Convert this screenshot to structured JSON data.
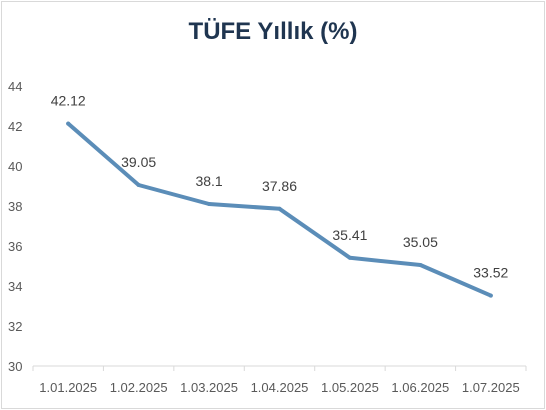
{
  "chart_data": {
    "type": "line",
    "title": "TÜFE Yıllık (%)",
    "categories": [
      "1.01.2025",
      "1.02.2025",
      "1.03.2025",
      "1.04.2025",
      "1.05.2025",
      "1.06.2025",
      "1.07.2025"
    ],
    "series": [
      {
        "values": [
          42.12,
          39.05,
          38.1,
          37.86,
          35.41,
          35.05,
          33.52
        ],
        "data_labels": [
          "42.12",
          "39.05",
          "38.1",
          "37.86",
          "35.41",
          "35.05",
          "33.52"
        ]
      }
    ],
    "ylim": [
      30,
      44
    ],
    "yticks": [
      "30",
      "32",
      "34",
      "36",
      "38",
      "40",
      "42",
      "44"
    ],
    "grid": false,
    "line_color": "#5b8db8",
    "axis_color": "#d9d9d9"
  }
}
